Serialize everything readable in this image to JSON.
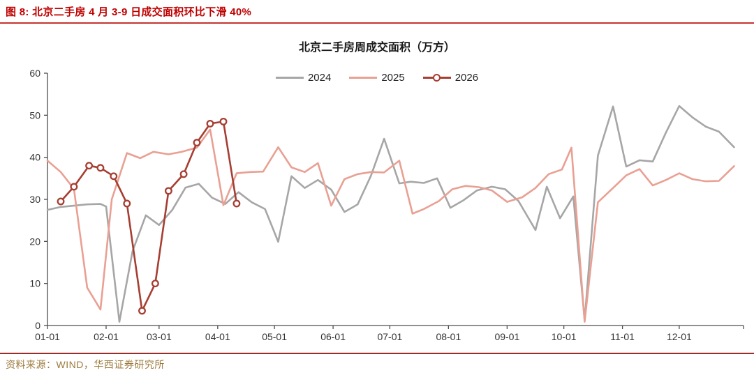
{
  "figure": {
    "title": "图 8: 北京二手房 4 月 3-9 日成交面积环比下滑 40%"
  },
  "source": {
    "text": "资料来源：WIND，华西证券研究所"
  },
  "colors": {
    "figure_title_red": "#c00000",
    "top_rule_red": "#c5342f",
    "bottom_rule_red": "#9b2d28",
    "axis_line": "#4d4d4d",
    "tick_label": "#333333",
    "source_gold": "#9c7a3c",
    "series_2024_gray": "#a6a6a6",
    "series_2025_salmon": "#e9a093",
    "series_2026_red": "#a63e32"
  },
  "chart_data": {
    "type": "line",
    "title": "北京二手房周成交面积（万方）",
    "xlabel": "",
    "ylabel": "",
    "grid": false,
    "legend_position": "top-center",
    "legend": [
      "2024",
      "2025",
      "2026"
    ],
    "x_axis": {
      "domain": [
        0,
        368
      ],
      "tick_days": [
        0,
        31,
        59,
        90,
        120,
        151,
        181,
        212,
        243,
        273,
        304,
        334
      ],
      "tick_labels": [
        "01-01",
        "02-01",
        "03-01",
        "04-01",
        "05-01",
        "06-01",
        "07-01",
        "08-01",
        "09-01",
        "10-01",
        "11-01",
        "12-01"
      ],
      "end_tick": true
    },
    "y_axis": {
      "min": 0,
      "max": 60,
      "step": 10,
      "tick_labels": [
        "0",
        "10",
        "20",
        "30",
        "40",
        "50",
        "60"
      ]
    },
    "series": [
      {
        "name": "2024",
        "color": "#a6a6a6",
        "marker": false,
        "points": [
          [
            0,
            27.5
          ],
          [
            7,
            28.2
          ],
          [
            14,
            28.5
          ],
          [
            21,
            28.8
          ],
          [
            28,
            28.9
          ],
          [
            31,
            28.3
          ],
          [
            38,
            0.9
          ],
          [
            45,
            17.7
          ],
          [
            52,
            26.2
          ],
          [
            59,
            23.9
          ],
          [
            66,
            27.5
          ],
          [
            73,
            32.8
          ],
          [
            80,
            33.7
          ],
          [
            87,
            30.4
          ],
          [
            94,
            28.9
          ],
          [
            101,
            31.7
          ],
          [
            108,
            29.3
          ],
          [
            115,
            27.7
          ],
          [
            122,
            19.9
          ],
          [
            129,
            35.5
          ],
          [
            136,
            32.7
          ],
          [
            143,
            34.6
          ],
          [
            150,
            32.3
          ],
          [
            157,
            27.0
          ],
          [
            164,
            28.8
          ],
          [
            171,
            35.6
          ],
          [
            178,
            44.4
          ],
          [
            186,
            33.8
          ],
          [
            192,
            34.2
          ],
          [
            199,
            33.9
          ],
          [
            206,
            35.0
          ],
          [
            213,
            28.0
          ],
          [
            220,
            29.8
          ],
          [
            227,
            32.1
          ],
          [
            235,
            33.0
          ],
          [
            242,
            32.4
          ],
          [
            249,
            29.6
          ],
          [
            258,
            22.7
          ],
          [
            264,
            33.0
          ],
          [
            271,
            25.5
          ],
          [
            278,
            30.7
          ],
          [
            284,
            1.3
          ],
          [
            291,
            40.4
          ],
          [
            299,
            52.1
          ],
          [
            306,
            37.8
          ],
          [
            313,
            39.3
          ],
          [
            320,
            39.0
          ],
          [
            327,
            45.9
          ],
          [
            334,
            52.2
          ],
          [
            341,
            49.5
          ],
          [
            348,
            47.3
          ],
          [
            355,
            46.1
          ],
          [
            363,
            42.4
          ]
        ]
      },
      {
        "name": "2025",
        "color": "#e9a093",
        "marker": false,
        "points": [
          [
            0,
            39.2
          ],
          [
            7,
            36.5
          ],
          [
            14,
            32.5
          ],
          [
            21,
            9.0
          ],
          [
            28,
            3.8
          ],
          [
            34,
            30.0
          ],
          [
            42,
            41.0
          ],
          [
            49,
            39.8
          ],
          [
            56,
            41.3
          ],
          [
            64,
            40.7
          ],
          [
            71,
            41.3
          ],
          [
            79,
            42.3
          ],
          [
            86,
            46.6
          ],
          [
            93,
            28.6
          ],
          [
            100,
            36.2
          ],
          [
            107,
            36.5
          ],
          [
            114,
            36.6
          ],
          [
            122,
            42.4
          ],
          [
            129,
            37.6
          ],
          [
            136,
            36.5
          ],
          [
            143,
            38.6
          ],
          [
            150,
            28.5
          ],
          [
            157,
            34.8
          ],
          [
            164,
            36.0
          ],
          [
            171,
            36.5
          ],
          [
            178,
            36.4
          ],
          [
            186,
            39.2
          ],
          [
            193,
            26.6
          ],
          [
            199,
            27.7
          ],
          [
            207,
            29.6
          ],
          [
            214,
            32.4
          ],
          [
            221,
            33.2
          ],
          [
            228,
            32.9
          ],
          [
            235,
            32.1
          ],
          [
            243,
            29.4
          ],
          [
            251,
            30.5
          ],
          [
            258,
            32.7
          ],
          [
            265,
            36.0
          ],
          [
            272,
            37.1
          ],
          [
            277,
            42.3
          ],
          [
            284,
            0.9
          ],
          [
            291,
            29.3
          ],
          [
            299,
            32.7
          ],
          [
            306,
            35.7
          ],
          [
            313,
            37.2
          ],
          [
            320,
            33.3
          ],
          [
            327,
            34.6
          ],
          [
            334,
            36.2
          ],
          [
            341,
            34.8
          ],
          [
            348,
            34.3
          ],
          [
            355,
            34.4
          ],
          [
            363,
            37.9
          ]
        ]
      },
      {
        "name": "2026",
        "color": "#a63e32",
        "marker": true,
        "points": [
          [
            7,
            29.5
          ],
          [
            14,
            33.0
          ],
          [
            22,
            38.0
          ],
          [
            28,
            37.5
          ],
          [
            35,
            35.5
          ],
          [
            42,
            29.0
          ],
          [
            50,
            3.5
          ],
          [
            57,
            10.0
          ],
          [
            64,
            32.0
          ],
          [
            72,
            36.0
          ],
          [
            79,
            43.5
          ],
          [
            86,
            48.0
          ],
          [
            93,
            48.5
          ],
          [
            100,
            29.0
          ]
        ]
      }
    ]
  }
}
